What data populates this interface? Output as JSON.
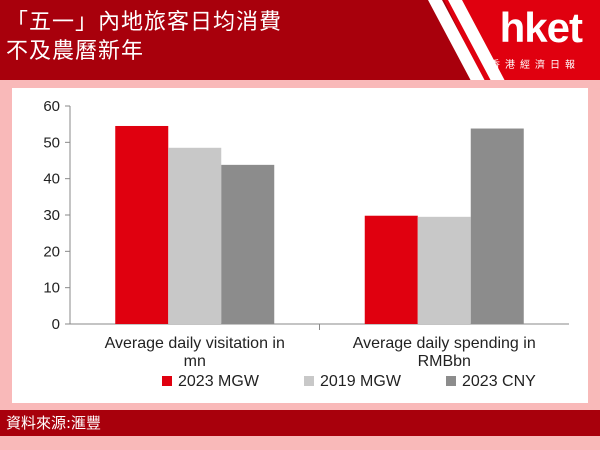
{
  "header": {
    "title_line1": "「五一」內地旅客日均消費",
    "title_line2": "不及農曆新年",
    "logo": "hket",
    "logo_sub": "香港經濟日報"
  },
  "footer": {
    "source": "資料來源:滙豐"
  },
  "colors": {
    "header_bg": "#a8000c",
    "logo_bg": "#e0000f",
    "page_bg": "#f9b9b9"
  },
  "chart_data": {
    "type": "bar",
    "categories": [
      [
        "Average daily visitation in",
        "mn"
      ],
      [
        "Average daily spending in",
        "RMBbn"
      ]
    ],
    "series": [
      {
        "name": "2023 MGW",
        "color": "#e0000f",
        "values": [
          54.5,
          29.8
        ]
      },
      {
        "name": "2019 MGW",
        "color": "#c8c8c8",
        "values": [
          48.5,
          29.5
        ]
      },
      {
        "name": "2023 CNY",
        "color": "#8c8c8c",
        "values": [
          43.8,
          53.8
        ]
      }
    ],
    "ylim": [
      0,
      60
    ],
    "yticks": [
      0,
      10,
      20,
      30,
      40,
      50,
      60
    ],
    "grid": false,
    "legend": "bottom"
  }
}
